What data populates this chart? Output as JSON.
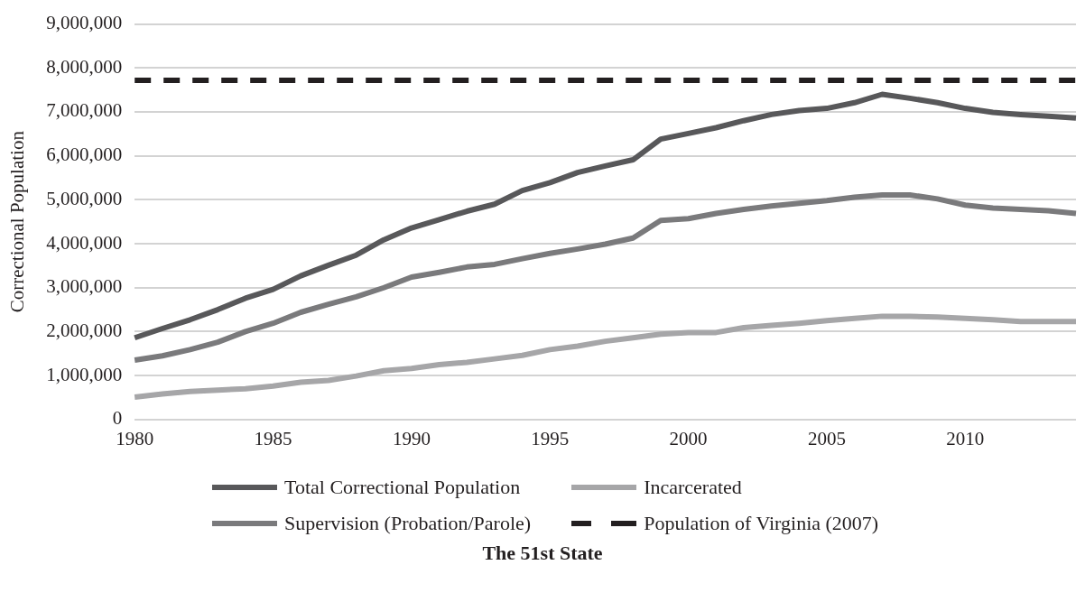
{
  "chart_data": {
    "type": "line",
    "title": "The 51st State",
    "ylabel": "Correctional Population",
    "categories": [
      "1980",
      null,
      null,
      null,
      null,
      "1985",
      null,
      null,
      null,
      null,
      "1990",
      null,
      null,
      null,
      null,
      "1995",
      null,
      null,
      null,
      null,
      "2000",
      null,
      null,
      null,
      null,
      "2005",
      null,
      null,
      null,
      null,
      "2010",
      null,
      null,
      null,
      null
    ],
    "series": [
      {
        "name": "Total Correctional Population",
        "color": "#58585a",
        "values": [
          1860000,
          2070000,
          2270000,
          2500000,
          2760000,
          2960000,
          3270000,
          3510000,
          3740000,
          4090000,
          4360000,
          4550000,
          4740000,
          4900000,
          5210000,
          5390000,
          5620000,
          5770000,
          5910000,
          6380000,
          6510000,
          6640000,
          6800000,
          6940000,
          7030000,
          7080000,
          7210000,
          7400000,
          7310000,
          7210000,
          7080000,
          6990000,
          6940000,
          6900000,
          6860000
        ]
      },
      {
        "name": "Supervision (Probation/Parole)",
        "color": "#7a7a7c",
        "values": [
          1350000,
          1450000,
          1590000,
          1760000,
          2000000,
          2190000,
          2440000,
          2620000,
          2790000,
          3000000,
          3240000,
          3350000,
          3470000,
          3530000,
          3660000,
          3780000,
          3880000,
          3990000,
          4130000,
          4530000,
          4570000,
          4690000,
          4780000,
          4860000,
          4920000,
          4980000,
          5060000,
          5110000,
          5110000,
          5020000,
          4880000,
          4810000,
          4780000,
          4750000,
          4690000
        ]
      },
      {
        "name": "Incarcerated",
        "color": "#a6a6a8",
        "values": [
          510000,
          580000,
          640000,
          670000,
          700000,
          760000,
          850000,
          890000,
          990000,
          1110000,
          1160000,
          1250000,
          1300000,
          1380000,
          1460000,
          1590000,
          1670000,
          1780000,
          1860000,
          1940000,
          1980000,
          1980000,
          2090000,
          2140000,
          2190000,
          2250000,
          2300000,
          2350000,
          2350000,
          2330000,
          2300000,
          2270000,
          2230000,
          2230000,
          2230000
        ]
      },
      {
        "name": "Population of Virginia (2007)",
        "color": "#231f20",
        "line_style": "dashed",
        "values": [
          7720000,
          7720000,
          7720000,
          7720000,
          7720000,
          7720000,
          7720000,
          7720000,
          7720000,
          7720000,
          7720000,
          7720000,
          7720000,
          7720000,
          7720000,
          7720000,
          7720000,
          7720000,
          7720000,
          7720000,
          7720000,
          7720000,
          7720000,
          7720000,
          7720000,
          7720000,
          7720000,
          7720000,
          7720000,
          7720000,
          7720000,
          7720000,
          7720000,
          7720000,
          7720000
        ]
      }
    ],
    "ylim": [
      0,
      9000000
    ],
    "yticks": [
      0,
      {
        "value": 1000000,
        "label": "1,000,000"
      },
      {
        "value": 2000000,
        "label": "2,000,000"
      },
      {
        "value": 3000000,
        "label": "3,000,000"
      },
      {
        "value": 4000000,
        "label": "4,000,000"
      },
      {
        "value": 5000000,
        "label": "5,000,000"
      },
      {
        "value": 6000000,
        "label": "6,000,000"
      },
      {
        "value": 7000000,
        "label": "7,000,000"
      },
      {
        "value": 8000000,
        "label": "8,000,000"
      },
      {
        "value": 9000000,
        "label": "9,000,000"
      }
    ],
    "grid": "y",
    "legend": "bottom",
    "marker": "none",
    "line_style": "solid"
  }
}
